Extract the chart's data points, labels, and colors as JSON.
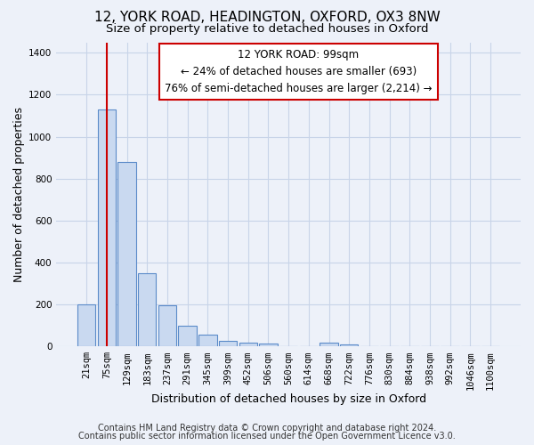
{
  "title1": "12, YORK ROAD, HEADINGTON, OXFORD, OX3 8NW",
  "title2": "Size of property relative to detached houses in Oxford",
  "xlabel": "Distribution of detached houses by size in Oxford",
  "ylabel": "Number of detached properties",
  "bar_labels": [
    "21sqm",
    "75sqm",
    "129sqm",
    "183sqm",
    "237sqm",
    "291sqm",
    "345sqm",
    "399sqm",
    "452sqm",
    "506sqm",
    "560sqm",
    "614sqm",
    "668sqm",
    "722sqm",
    "776sqm",
    "830sqm",
    "884sqm",
    "938sqm",
    "992sqm",
    "1046sqm",
    "1100sqm"
  ],
  "bar_heights": [
    200,
    1130,
    880,
    350,
    195,
    100,
    55,
    25,
    20,
    15,
    0,
    0,
    20,
    10,
    0,
    0,
    0,
    0,
    0,
    0,
    0
  ],
  "bar_color": "#c9d9f0",
  "bar_edge_color": "#5b8bc9",
  "bar_edge_width": 0.8,
  "red_line_bar_idx": 1,
  "ylim": [
    0,
    1450
  ],
  "yticks": [
    0,
    200,
    400,
    600,
    800,
    1000,
    1200,
    1400
  ],
  "annotation_line1": "12 YORK ROAD: 99sqm",
  "annotation_line2": "← 24% of detached houses are smaller (693)",
  "annotation_line3": "76% of semi-detached houses are larger (2,214) →",
  "annotation_box_color": "white",
  "annotation_box_edge": "#cc0000",
  "footnote1": "Contains HM Land Registry data © Crown copyright and database right 2024.",
  "footnote2": "Contains public sector information licensed under the Open Government Licence v3.0.",
  "bg_color": "#edf1f9",
  "grid_color": "#c8d4e8",
  "title1_fontsize": 11,
  "title2_fontsize": 9.5,
  "xlabel_fontsize": 9,
  "ylabel_fontsize": 9,
  "tick_fontsize": 7.5,
  "annot_fontsize": 8.5,
  "footnote_fontsize": 7
}
